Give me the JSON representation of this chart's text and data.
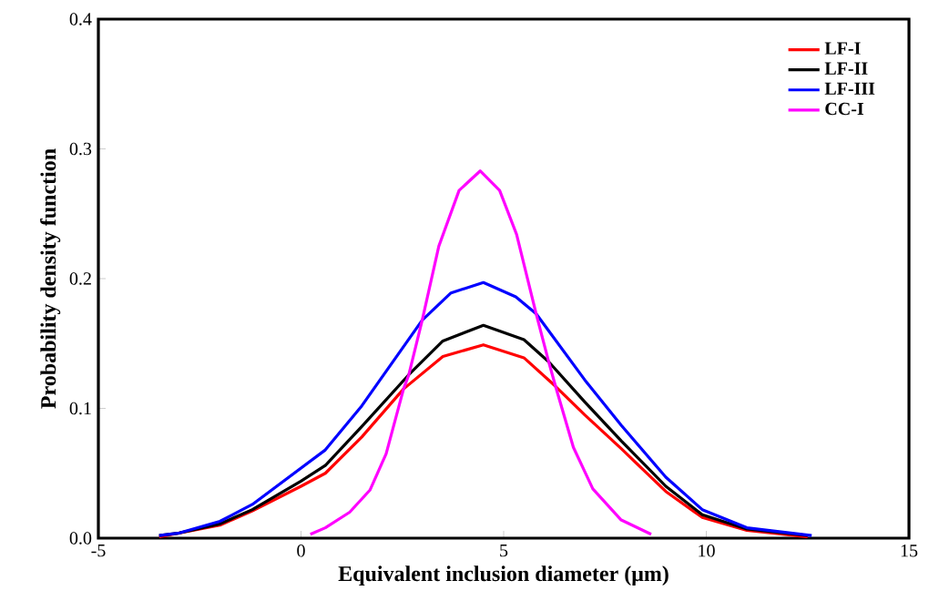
{
  "chart_data": {
    "type": "line",
    "xlabel": "Equivalent inclusion diameter   (μm)",
    "ylabel": "Probability density function",
    "xlim": [
      -5,
      15
    ],
    "ylim": [
      0,
      0.4
    ],
    "xticks": [
      -5,
      0,
      5,
      10,
      15
    ],
    "yticks": [
      {
        "value": 0,
        "label": "0.0"
      },
      {
        "value": 0.1,
        "label": "0.1"
      },
      {
        "value": 0.2,
        "label": "0.2"
      },
      {
        "value": 0.3,
        "label": "0.3"
      },
      {
        "value": 0.4,
        "label": "0.4"
      }
    ],
    "grid": false,
    "legend": "top right",
    "line_style": "solid",
    "series": [
      {
        "name": "LF-I",
        "color": "#ff0000",
        "x": [
          -3.5,
          -2.0,
          -1.2,
          0,
          0.6,
          1.5,
          2.53,
          3.5,
          4.5,
          5.5,
          6.28,
          7.0,
          7.9,
          9.0,
          9.9,
          11,
          12.5
        ],
        "values": [
          0.001,
          0.01,
          0.021,
          0.04,
          0.05,
          0.078,
          0.115,
          0.14,
          0.149,
          0.139,
          0.117,
          0.095,
          0.069,
          0.036,
          0.016,
          0.006,
          0.001
        ]
      },
      {
        "name": "LF-II",
        "color": "#000000",
        "x": [
          -3.5,
          -3.0,
          -2.0,
          -1.2,
          0,
          0.6,
          1.5,
          2.66,
          3.5,
          4.5,
          5.5,
          6.11,
          7.0,
          7.9,
          9.0,
          9.9,
          11,
          12.5
        ],
        "values": [
          0.002,
          0.004,
          0.011,
          0.022,
          0.044,
          0.056,
          0.086,
          0.126,
          0.152,
          0.164,
          0.153,
          0.136,
          0.105,
          0.075,
          0.04,
          0.018,
          0.007,
          0.002
        ]
      },
      {
        "name": "LF-III",
        "color": "#0000ff",
        "x": [
          -3.5,
          -3.0,
          -2.0,
          -1.2,
          0,
          0.6,
          1.5,
          2.99,
          3.7,
          4.5,
          5.3,
          5.8,
          7.0,
          7.9,
          9.0,
          9.9,
          11,
          12.6
        ],
        "values": [
          0.002,
          0.004,
          0.013,
          0.026,
          0.054,
          0.068,
          0.102,
          0.168,
          0.189,
          0.197,
          0.186,
          0.173,
          0.122,
          0.087,
          0.047,
          0.022,
          0.008,
          0.002
        ]
      },
      {
        "name": "CC-I",
        "color": "#ff00ff",
        "x": [
          0.23,
          0.6,
          1.2,
          1.7,
          2.1,
          2.53,
          2.66,
          2.99,
          3.4,
          3.9,
          4.42,
          4.9,
          5.32,
          5.8,
          6.11,
          6.28,
          6.72,
          7.2,
          7.9,
          8.64
        ],
        "values": [
          0.003,
          0.008,
          0.02,
          0.037,
          0.065,
          0.115,
          0.126,
          0.168,
          0.225,
          0.268,
          0.283,
          0.268,
          0.234,
          0.173,
          0.136,
          0.117,
          0.07,
          0.038,
          0.014,
          0.003
        ]
      }
    ]
  }
}
